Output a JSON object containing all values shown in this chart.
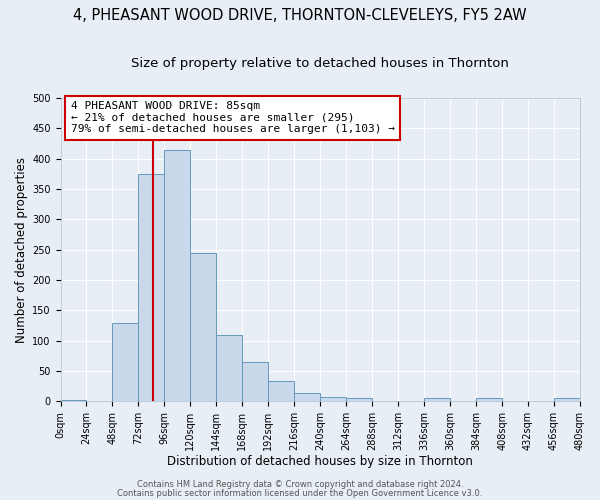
{
  "title": "4, PHEASANT WOOD DRIVE, THORNTON-CLEVELEYS, FY5 2AW",
  "subtitle": "Size of property relative to detached houses in Thornton",
  "xlabel": "Distribution of detached houses by size in Thornton",
  "ylabel": "Number of detached properties",
  "bin_edges": [
    0,
    24,
    48,
    72,
    96,
    120,
    144,
    168,
    192,
    216,
    240,
    264,
    288,
    312,
    336,
    360,
    384,
    408,
    432,
    456,
    480
  ],
  "bar_values": [
    3,
    0,
    130,
    375,
    415,
    245,
    110,
    65,
    33,
    14,
    8,
    5,
    0,
    0,
    5,
    0,
    5,
    0,
    0,
    5
  ],
  "bar_color": "#c9d9eb",
  "bar_edge_color": "#6699bb",
  "property_line_x": 85,
  "property_line_color": "#cc0000",
  "ylim": [
    0,
    500
  ],
  "annotation_line1": "4 PHEASANT WOOD DRIVE: 85sqm",
  "annotation_line2": "← 21% of detached houses are smaller (295)",
  "annotation_line3": "79% of semi-detached houses are larger (1,103) →",
  "footer_line1": "Contains HM Land Registry data © Crown copyright and database right 2024.",
  "footer_line2": "Contains public sector information licensed under the Open Government Licence v3.0.",
  "tick_labels": [
    "0sqm",
    "24sqm",
    "48sqm",
    "72sqm",
    "96sqm",
    "120sqm",
    "144sqm",
    "168sqm",
    "192sqm",
    "216sqm",
    "240sqm",
    "264sqm",
    "288sqm",
    "312sqm",
    "336sqm",
    "360sqm",
    "384sqm",
    "408sqm",
    "432sqm",
    "456sqm",
    "480sqm"
  ],
  "background_color": "#e8eef5",
  "plot_background_color": "#e8eef5",
  "grid_color": "#ffffff",
  "title_fontsize": 10.5,
  "subtitle_fontsize": 9.5,
  "axis_label_fontsize": 8.5,
  "tick_fontsize": 7,
  "annotation_fontsize": 8,
  "footer_fontsize": 6
}
